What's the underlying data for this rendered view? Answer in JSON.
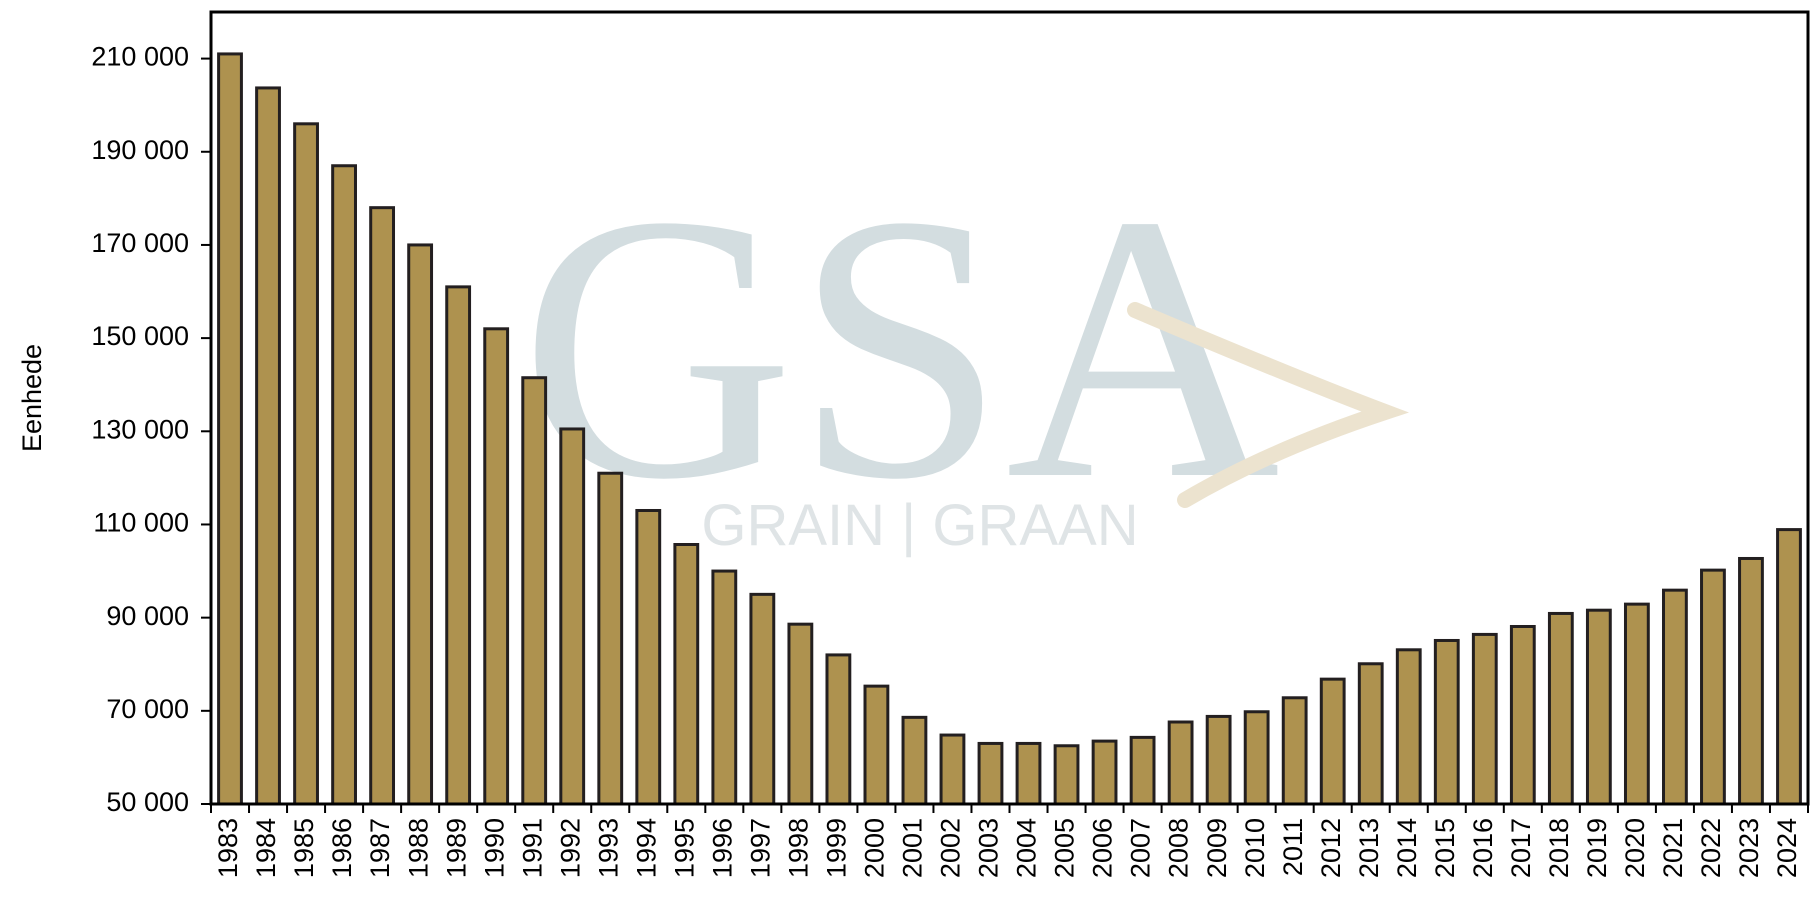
{
  "chart_data": {
    "type": "bar",
    "y_label": "Eenhede",
    "watermark": {
      "logo": "GSA",
      "tagline": "GRAIN | GRAAN"
    },
    "categories": [
      "1983",
      "1984",
      "1985",
      "1986",
      "1987",
      "1988",
      "1989",
      "1990",
      "1991",
      "1992",
      "1993",
      "1994",
      "1995",
      "1996",
      "1997",
      "1998",
      "1999",
      "2000",
      "2001",
      "2002",
      "2003",
      "2004",
      "2005",
      "2006",
      "2007",
      "2008",
      "2009",
      "2010",
      "2011",
      "2012",
      "2013",
      "2014",
      "2015",
      "2016",
      "2017",
      "2018",
      "2019",
      "2020",
      "2021",
      "2022",
      "2023",
      "2024"
    ],
    "values": [
      211000,
      203700,
      196000,
      187000,
      178000,
      170000,
      161000,
      152000,
      141500,
      130500,
      121000,
      113000,
      105700,
      100000,
      95000,
      88600,
      82000,
      75300,
      68600,
      64800,
      63000,
      63000,
      62500,
      63500,
      64300,
      67600,
      68800,
      69800,
      72800,
      76800,
      80100,
      83100,
      85100,
      86400,
      88100,
      90900,
      91600,
      92900,
      95900,
      100200,
      102700,
      108900
    ],
    "color": "#ae924f",
    "edge_color": "#231f20",
    "ylim": [
      50000,
      220000
    ],
    "yticks": [
      {
        "value": 50000,
        "label": "50 000"
      },
      {
        "value": 70000,
        "label": "70 000"
      },
      {
        "value": 90000,
        "label": "90 000"
      },
      {
        "value": 110000,
        "label": "110 000"
      },
      {
        "value": 130000,
        "label": "130 000"
      },
      {
        "value": 150000,
        "label": "150 000"
      },
      {
        "value": 170000,
        "label": "170 000"
      },
      {
        "value": 190000,
        "label": "190 000"
      },
      {
        "value": 210000,
        "label": "210 000"
      }
    ],
    "grid": false
  }
}
